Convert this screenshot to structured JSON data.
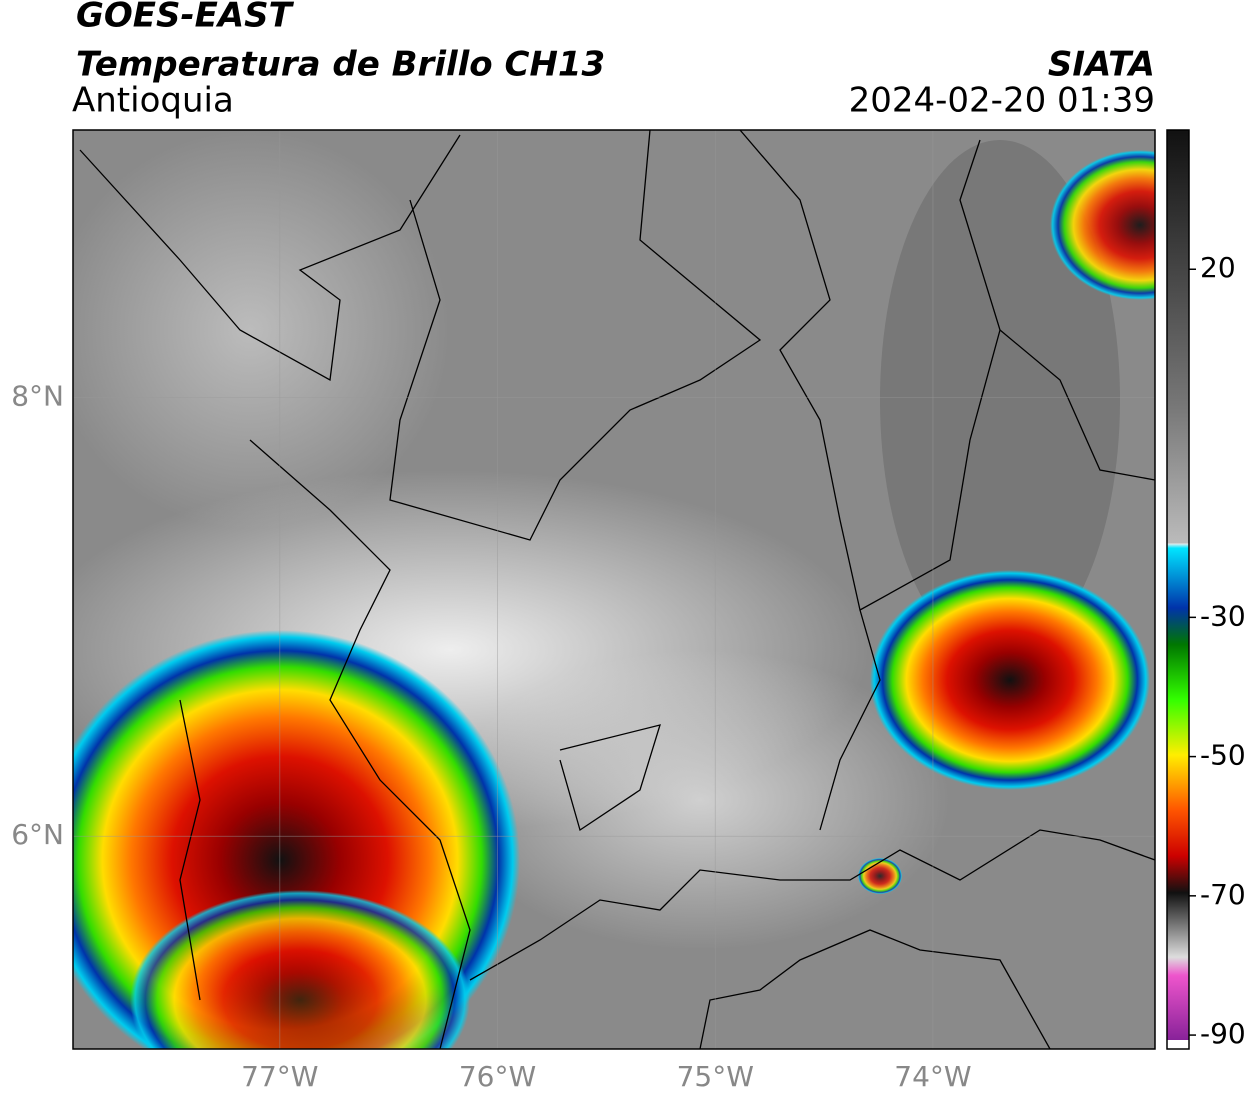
{
  "header": {
    "title": "GOES-EAST",
    "subtitle": "Temperatura de Brillo CH13",
    "region": "Antioquia",
    "source": "SIATA",
    "datetime": "2024-02-20 01:39"
  },
  "map": {
    "xlim": [
      -77.95,
      -72.98
    ],
    "ylim": [
      5.03,
      9.22
    ],
    "xticks": [
      {
        "value": -77,
        "label": "77°W"
      },
      {
        "value": -76,
        "label": "76°W"
      },
      {
        "value": -75,
        "label": "75°W"
      },
      {
        "value": -74,
        "label": "74°W"
      }
    ],
    "yticks": [
      {
        "value": 8,
        "label": "8°N"
      },
      {
        "value": 6,
        "label": "6°N"
      }
    ],
    "grid": true
  },
  "colorbar": {
    "lim": [
      -92,
      40
    ],
    "ticks": [
      20,
      -30,
      -50,
      -70,
      -90
    ]
  }
}
